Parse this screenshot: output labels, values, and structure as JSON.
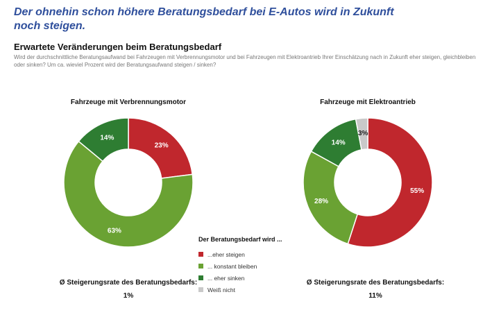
{
  "headline": "Der ohnehin schon höhere Beratungsbedarf bei E-Autos wird in Zukunft noch steigen.",
  "subheadline": "Erwartete Veränderungen beim Beratungsbedarf",
  "question": "Wird der durchschnittliche Beratungsaufwand bei Fahrzeugen mit Verbrennungsmotor und bei Fahrzeugen mit Elektroantrieb Ihrer Einschätzung nach in Zukunft eher steigen, gleichbleiben oder sinken? Um ca. wieviel Prozent wird der Beratungsaufwand steigen / sinken?",
  "legend": {
    "title": "Der Beratungsbedarf wird ...",
    "items": [
      {
        "label": "...eher steigen",
        "color": "#c0272d"
      },
      {
        "label": "... konstant bleiben",
        "color": "#6aa233"
      },
      {
        "label": "... eher sinken",
        "color": "#2e7d32"
      },
      {
        "label": "Weiß nicht",
        "color": "#c9c9c9"
      }
    ]
  },
  "chart_data": [
    {
      "type": "pie",
      "title": "Fahrzeuge mit Verbrennungsmotor",
      "slices": [
        {
          "label": "...eher steigen",
          "value": 23,
          "display": "23%",
          "color": "#c0272d"
        },
        {
          "label": "... konstant bleiben",
          "value": 63,
          "display": "63%",
          "color": "#6aa233"
        },
        {
          "label": "... eher sinken",
          "value": 14,
          "display": "14%",
          "color": "#2e7d32"
        }
      ],
      "rate_label": "Ø Steigerungsrate des Beratungsbedarfs:",
      "rate_value": "1%"
    },
    {
      "type": "pie",
      "title": "Fahrzeuge mit Elektroantrieb",
      "slices": [
        {
          "label": "...eher steigen",
          "value": 55,
          "display": "55%",
          "color": "#c0272d"
        },
        {
          "label": "... konstant bleiben",
          "value": 28,
          "display": "28%",
          "color": "#6aa233"
        },
        {
          "label": "... eher sinken",
          "value": 14,
          "display": "14%",
          "color": "#2e7d32"
        },
        {
          "label": "Weiß nicht",
          "value": 3,
          "display": "3%",
          "color": "#c9c9c9"
        }
      ],
      "rate_label": "Ø Steigerungsrate des Beratungsbedarfs:",
      "rate_value": "11%"
    }
  ]
}
